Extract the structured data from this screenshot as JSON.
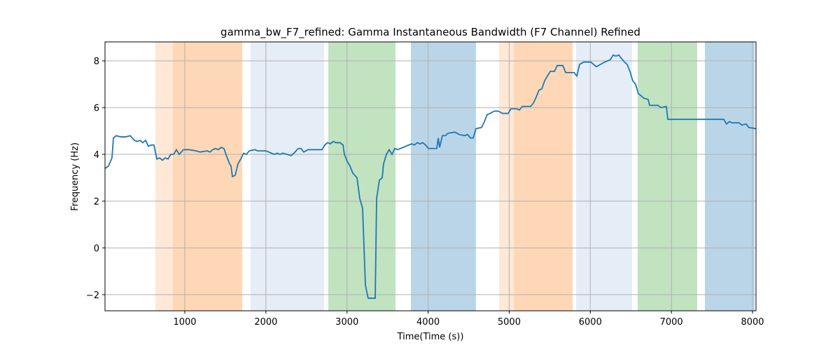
{
  "chart_data": {
    "type": "line",
    "title": "gamma_bw_F7_refined: Gamma Instantaneous Bandwidth (F7 Channel) Refined",
    "x_label": "Time(Time (s))",
    "y_label": "Frequency (Hz)",
    "xlim": [
      16,
      8043
    ],
    "ylim": [
      -2.69,
      8.81
    ],
    "xticks": [
      1000,
      2000,
      3000,
      4000,
      5000,
      6000,
      7000,
      8000
    ],
    "yticks": [
      {
        "value": -2,
        "label": "−2"
      },
      0,
      2,
      4,
      6,
      8
    ],
    "grid": true,
    "spans": [
      {
        "x": [
          637,
          853
        ],
        "color": "#ffe8d6"
      },
      {
        "x": [
          853,
          1708
        ],
        "color": "#fed8b6"
      },
      {
        "x": [
          1811,
          2718
        ],
        "color": "#e5edf7"
      },
      {
        "x": [
          2769,
          3598
        ],
        "color": "#c1e3c0"
      },
      {
        "x": [
          3788,
          4590
        ],
        "color": "#bad5e8"
      },
      {
        "x": [
          4875,
          5057
        ],
        "color": "#ffe8d6"
      },
      {
        "x": [
          5057,
          5782
        ],
        "color": "#fed8b6"
      },
      {
        "x": [
          5825,
          6515
        ],
        "color": "#e5edf7"
      },
      {
        "x": [
          6584,
          7318
        ],
        "color": "#c1e3c0"
      },
      {
        "x": [
          7413,
          8026
        ],
        "color": "#bad5e8"
      }
    ],
    "series": [
      {
        "color": "#1f77b4",
        "x": [
          16,
          59,
          102,
          120,
          154,
          206,
          275,
          327,
          379,
          413,
          448,
          482,
          517,
          551,
          586,
          620,
          655,
          689,
          724,
          758,
          793,
          827,
          862,
          896,
          931,
          983,
          1052,
          1138,
          1190,
          1276,
          1311,
          1345,
          1380,
          1414,
          1449,
          1483,
          1518,
          1552,
          1570,
          1587,
          1621,
          1656,
          1690,
          1725,
          1760,
          1794,
          1863,
          1898,
          2001,
          2070,
          2105,
          2139,
          2174,
          2208,
          2260,
          2312,
          2346,
          2398,
          2433,
          2467,
          2519,
          2692,
          2726,
          2761,
          2795,
          2830,
          2864,
          2916,
          2951,
          2968,
          3002,
          3037,
          3071,
          3123,
          3158,
          3192,
          3227,
          3261,
          3348,
          3365,
          3399,
          3434,
          3451,
          3486,
          3520,
          3555,
          3589,
          3624,
          3693,
          3762,
          3797,
          3831,
          3866,
          3900,
          3935,
          3969,
          4004,
          4107,
          4125,
          4142,
          4176,
          4211,
          4245,
          4331,
          4383,
          4452,
          4487,
          4521,
          4556,
          4590,
          4659,
          4694,
          4728,
          4763,
          4815,
          4866,
          4918,
          4987,
          5022,
          5091,
          5126,
          5161,
          5264,
          5299,
          5333,
          5368,
          5402,
          5437,
          5471,
          5506,
          5558,
          5592,
          5661,
          5696,
          5799,
          5834,
          5868,
          5920,
          6006,
          6040,
          6075,
          6127,
          6178,
          6247,
          6282,
          6316,
          6351,
          6385,
          6420,
          6454,
          6489,
          6523,
          6558,
          6592,
          6627,
          6662,
          6713,
          6731,
          6834,
          6869,
          6938,
          6955,
          7352,
          7645,
          7679,
          7714,
          7748,
          7834,
          7869,
          7921,
          7955,
          8042
        ],
        "values": [
          3.4,
          3.5,
          3.85,
          4.7,
          4.8,
          4.75,
          4.75,
          4.8,
          4.6,
          4.55,
          4.6,
          4.5,
          4.6,
          4.35,
          4.4,
          4.4,
          3.8,
          3.85,
          3.75,
          3.85,
          3.8,
          4.0,
          4.0,
          4.2,
          4.0,
          4.2,
          4.2,
          4.15,
          4.1,
          4.15,
          4.1,
          4.2,
          4.25,
          4.2,
          4.3,
          4.25,
          3.9,
          3.6,
          3.5,
          3.05,
          3.1,
          3.6,
          3.8,
          4.05,
          4.0,
          4.15,
          4.2,
          4.15,
          4.15,
          4.05,
          4.0,
          4.05,
          4.0,
          4.05,
          4.0,
          3.95,
          4.05,
          4.25,
          4.25,
          4.1,
          4.2,
          4.2,
          4.4,
          4.5,
          4.45,
          4.55,
          4.5,
          4.5,
          4.4,
          4.0,
          3.7,
          3.5,
          3.2,
          3.0,
          2.1,
          1.7,
          -1.6,
          -2.15,
          -2.15,
          2.1,
          2.9,
          3.0,
          3.6,
          4.0,
          4.2,
          4.0,
          4.25,
          4.2,
          4.3,
          4.4,
          4.45,
          4.4,
          4.5,
          4.45,
          4.5,
          4.4,
          4.25,
          4.25,
          4.7,
          4.3,
          4.8,
          4.8,
          4.9,
          4.95,
          4.85,
          4.8,
          4.85,
          4.7,
          4.7,
          5.1,
          5.15,
          5.4,
          5.7,
          5.75,
          5.85,
          5.85,
          5.75,
          5.75,
          5.95,
          5.95,
          5.9,
          6.05,
          6.05,
          6.2,
          6.45,
          6.75,
          6.8,
          7.15,
          7.35,
          7.55,
          7.55,
          7.8,
          7.8,
          7.5,
          7.5,
          7.35,
          7.85,
          7.95,
          7.95,
          7.85,
          7.75,
          7.85,
          7.95,
          8.05,
          8.25,
          8.2,
          8.25,
          8.1,
          7.95,
          7.85,
          7.55,
          7.15,
          7.0,
          6.6,
          6.5,
          6.4,
          6.35,
          6.1,
          6.1,
          6.0,
          6.05,
          5.5,
          5.5,
          5.5,
          5.3,
          5.4,
          5.35,
          5.35,
          5.25,
          5.3,
          5.15,
          5.1
        ]
      }
    ]
  }
}
